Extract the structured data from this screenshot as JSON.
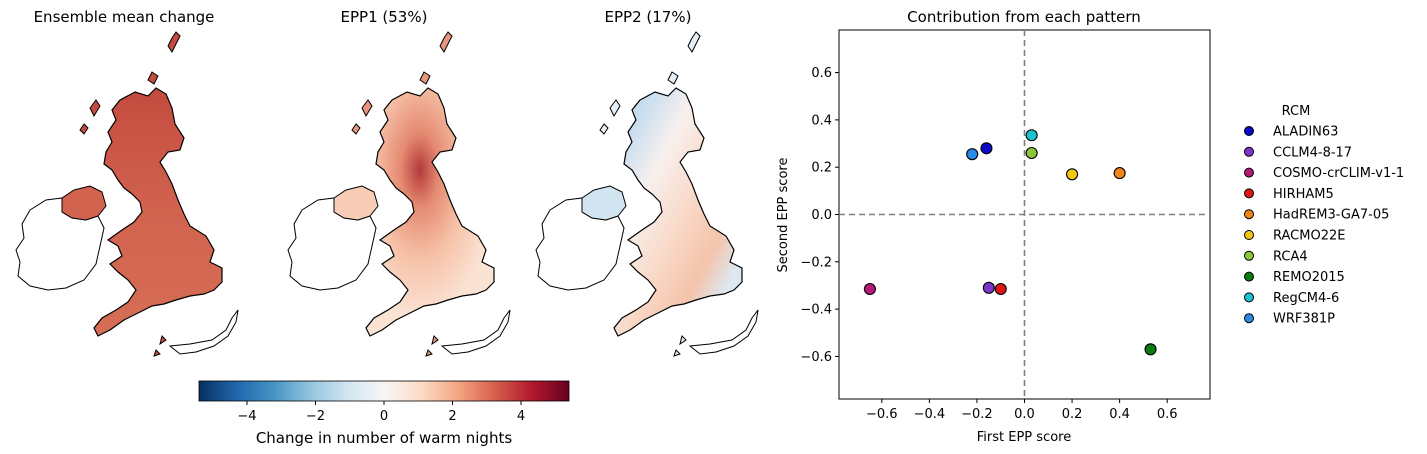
{
  "maps": [
    {
      "title": "Ensemble mean change",
      "field": "mean"
    },
    {
      "title": "EPP1 (53%)",
      "field": "epp1"
    },
    {
      "title": "EPP2 (17%)",
      "field": "epp2"
    }
  ],
  "colorbar": {
    "label": "Change in number of warm nights",
    "range": [
      -5.4,
      5.4
    ],
    "ticks": [
      -4,
      -2,
      0,
      2,
      4
    ],
    "colormap": "RdBu_r",
    "colors": [
      "#053061",
      "#2166ac",
      "#4393c3",
      "#92c5de",
      "#d1e5f0",
      "#f7f7f7",
      "#fddbc7",
      "#f4a582",
      "#d6604d",
      "#b2182b",
      "#67001f"
    ]
  },
  "chart_data": {
    "type": "scatter",
    "title": "Contribution from each pattern",
    "xlabel": "First EPP score",
    "ylabel": "Second EPP score",
    "xlim": [
      -0.78,
      0.78
    ],
    "ylim": [
      -0.78,
      0.78
    ],
    "xticks": [
      -0.6,
      -0.4,
      -0.2,
      0.0,
      0.2,
      0.4,
      0.6
    ],
    "yticks": [
      -0.6,
      -0.4,
      -0.2,
      0.0,
      0.2,
      0.4,
      0.6
    ],
    "grid": false,
    "reference_lines": [
      0,
      0
    ],
    "legend": {
      "title": "RCM",
      "placement": "outside-right"
    },
    "series": [
      {
        "name": "ALADIN63",
        "x": -0.16,
        "y": 0.28,
        "color": "#0a0ac8"
      },
      {
        "name": "CCLM4-8-17",
        "x": -0.15,
        "y": -0.31,
        "color": "#7b35c9"
      },
      {
        "name": "COSMO-crCLIM-v1-1",
        "x": -0.65,
        "y": -0.315,
        "color": "#b5197a"
      },
      {
        "name": "HIRHAM5",
        "x": -0.1,
        "y": -0.315,
        "color": "#e01515"
      },
      {
        "name": "HadREM3-GA7-05",
        "x": 0.4,
        "y": 0.175,
        "color": "#f38518"
      },
      {
        "name": "RACMO22E",
        "x": 0.2,
        "y": 0.17,
        "color": "#f0c814"
      },
      {
        "name": "RCA4",
        "x": 0.03,
        "y": 0.26,
        "color": "#8cc63c"
      },
      {
        "name": "REMO2015",
        "x": 0.53,
        "y": -0.57,
        "color": "#0c7a12"
      },
      {
        "name": "RegCM4-6",
        "x": 0.03,
        "y": 0.335,
        "color": "#18c4d0"
      },
      {
        "name": "WRF381P",
        "x": -0.22,
        "y": 0.255,
        "color": "#2a8be6"
      }
    ]
  }
}
